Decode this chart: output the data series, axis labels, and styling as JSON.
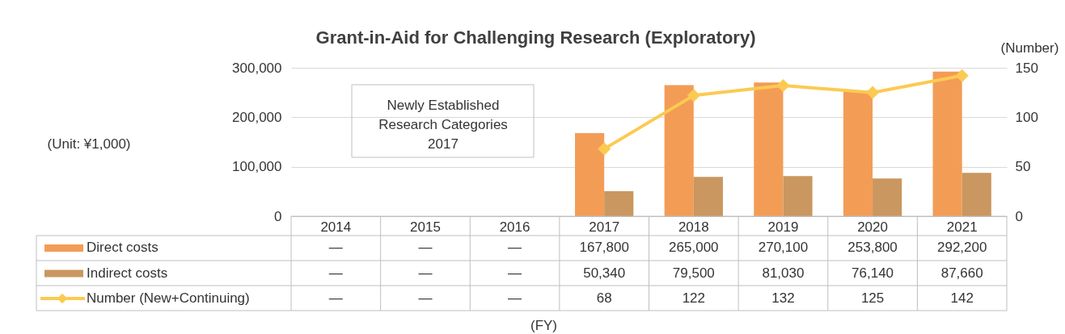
{
  "chart_data": {
    "type": "bar",
    "title": "Grant-in-Aid for Challenging Research (Exploratory)",
    "y2label": "(Number)",
    "categories": [
      "2014",
      "2015",
      "2016",
      "2017",
      "2018",
      "2019",
      "2020",
      "2021"
    ],
    "series": [
      {
        "name": "Direct costs",
        "color": "#f39c56",
        "values": [
          null,
          null,
          null,
          167800,
          265000,
          270100,
          253800,
          292200
        ],
        "value_labels": [
          "—",
          "—",
          "—",
          "167,800",
          "265,000",
          "270,100",
          "253,800",
          "292,200"
        ]
      },
      {
        "name": "Indirect costs",
        "color": "#c9975f",
        "values": [
          null,
          null,
          null,
          50340,
          79500,
          81030,
          76140,
          87660
        ],
        "value_labels": [
          "—",
          "—",
          "—",
          "50,340",
          "79,500",
          "81,030",
          "76,140",
          "87,660"
        ]
      },
      {
        "name": "Number (New+Continuing)",
        "type": "line",
        "axis": "y2",
        "color": "#fcca52",
        "marker": "diamond",
        "values": [
          null,
          null,
          null,
          68,
          122,
          132,
          125,
          142
        ],
        "value_labels": [
          "—",
          "—",
          "—",
          "68",
          "122",
          "132",
          "125",
          "142"
        ]
      }
    ],
    "ylim": [
      0,
      300000
    ],
    "yticks": [
      0,
      {
        "value": 100000,
        "label": "100,000"
      },
      {
        "value": 200000,
        "label": "200,000"
      },
      {
        "value": 300000,
        "label": "300,000"
      }
    ],
    "y2lim": [
      0,
      150
    ],
    "y2ticks": [
      0,
      50,
      100,
      150
    ],
    "grid": "y",
    "legend": "bottom left",
    "annotations": [
      "(Unit: ¥1,000)",
      "Newly Established Research Categories 2017",
      "(FY)"
    ]
  }
}
